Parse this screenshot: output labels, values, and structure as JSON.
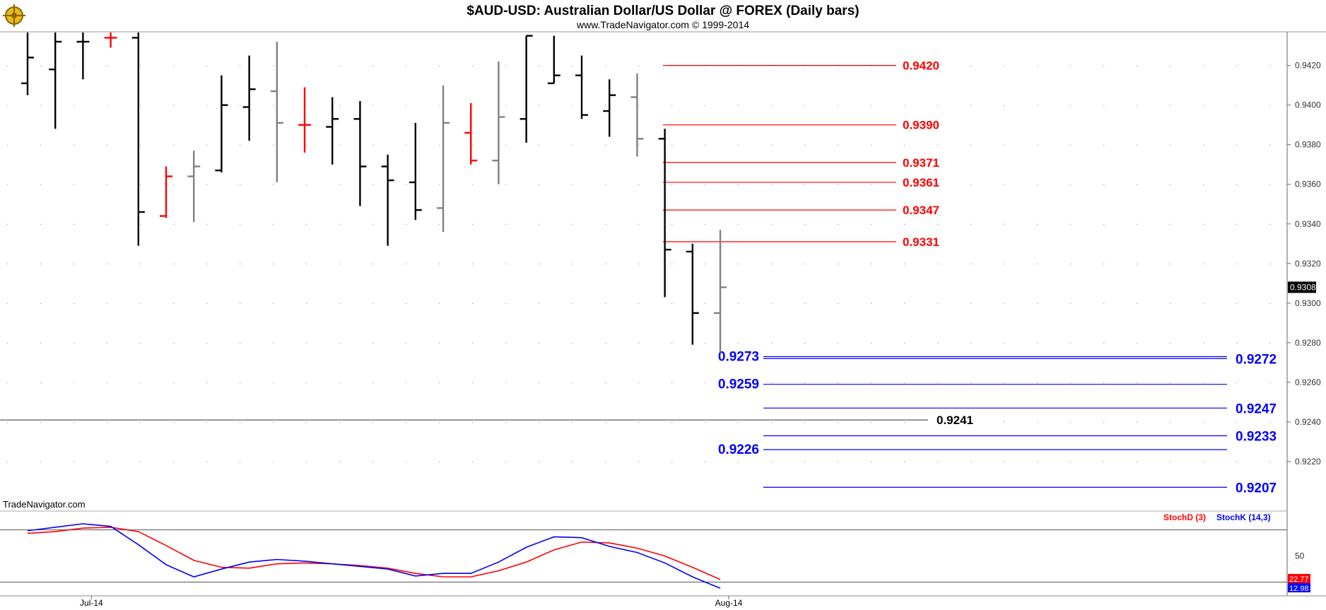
{
  "header": {
    "title": "$AUD-USD:  Australian Dollar/US Dollar @ FOREX  (Daily bars)",
    "subtitle": "www.TradeNavigator.com © 1999-2014",
    "watermark": "TradeNavigator.com"
  },
  "colors": {
    "up_bar": "#000000",
    "down_bar": "#808080",
    "red_bar": "#ff0000",
    "resistance": "#ff0000",
    "support": "#0000ff",
    "stoch_d": "#ff0000",
    "stoch_k": "#0000ff"
  },
  "chart_data": {
    "type": "ohlc",
    "price_axis": {
      "ylim": [
        0.9195,
        0.9437
      ],
      "ticks": [
        "0.9420",
        "0.9400",
        "0.9380",
        "0.9360",
        "0.9340",
        "0.9320",
        "0.9300",
        "0.9280",
        "0.9260",
        "0.9240",
        "0.9220"
      ],
      "tick_values": [
        0.942,
        0.94,
        0.938,
        0.936,
        0.934,
        0.932,
        0.93,
        0.928,
        0.926,
        0.924,
        0.922
      ],
      "last_price_label": "0.9308",
      "last_price_value": 0.9308
    },
    "x_axis": {
      "labels": [
        "Jul-14",
        "Aug-14"
      ],
      "label_bar_index": [
        2,
        25
      ]
    },
    "bars": [
      {
        "o": 0.9411,
        "h": 0.945,
        "l": 0.9405,
        "c": 0.9424,
        "color": "black"
      },
      {
        "o": 0.9418,
        "h": 0.945,
        "l": 0.9388,
        "c": 0.9432,
        "color": "black"
      },
      {
        "o": 0.9432,
        "h": 0.945,
        "l": 0.9413,
        "c": 0.9432,
        "color": "black"
      },
      {
        "o": 0.9434,
        "h": 0.945,
        "l": 0.9429,
        "c": 0.9434,
        "color": "red"
      },
      {
        "o": 0.9434,
        "h": 0.945,
        "l": 0.9329,
        "c": 0.9346,
        "color": "black"
      },
      {
        "o": 0.9344,
        "h": 0.9369,
        "l": 0.9343,
        "c": 0.9364,
        "color": "red"
      },
      {
        "o": 0.9364,
        "h": 0.9377,
        "l": 0.9341,
        "c": 0.9369,
        "color": "gray"
      },
      {
        "o": 0.9367,
        "h": 0.9415,
        "l": 0.9366,
        "c": 0.94,
        "color": "black"
      },
      {
        "o": 0.9399,
        "h": 0.9425,
        "l": 0.9382,
        "c": 0.9408,
        "color": "black"
      },
      {
        "o": 0.9407,
        "h": 0.9432,
        "l": 0.9361,
        "c": 0.9391,
        "color": "gray"
      },
      {
        "o": 0.939,
        "h": 0.9409,
        "l": 0.9376,
        "c": 0.939,
        "color": "red"
      },
      {
        "o": 0.9389,
        "h": 0.9404,
        "l": 0.937,
        "c": 0.9393,
        "color": "black"
      },
      {
        "o": 0.9393,
        "h": 0.9402,
        "l": 0.9349,
        "c": 0.9369,
        "color": "black"
      },
      {
        "o": 0.9369,
        "h": 0.9375,
        "l": 0.9329,
        "c": 0.9362,
        "color": "black"
      },
      {
        "o": 0.9361,
        "h": 0.9391,
        "l": 0.9342,
        "c": 0.9347,
        "color": "black"
      },
      {
        "o": 0.9348,
        "h": 0.941,
        "l": 0.9336,
        "c": 0.9391,
        "color": "gray"
      },
      {
        "o": 0.9386,
        "h": 0.9401,
        "l": 0.937,
        "c": 0.9372,
        "color": "red"
      },
      {
        "o": 0.9372,
        "h": 0.9422,
        "l": 0.936,
        "c": 0.9394,
        "color": "gray"
      },
      {
        "o": 0.9393,
        "h": 0.9435,
        "l": 0.9381,
        "c": 0.9435,
        "color": "black"
      },
      {
        "o": 0.9411,
        "h": 0.9435,
        "l": 0.9411,
        "c": 0.9415,
        "color": "black"
      },
      {
        "o": 0.9415,
        "h": 0.9425,
        "l": 0.9393,
        "c": 0.9395,
        "color": "black"
      },
      {
        "o": 0.9397,
        "h": 0.9413,
        "l": 0.9384,
        "c": 0.9405,
        "color": "black"
      },
      {
        "o": 0.9404,
        "h": 0.9416,
        "l": 0.9374,
        "c": 0.9383,
        "color": "gray"
      },
      {
        "o": 0.9383,
        "h": 0.9388,
        "l": 0.9303,
        "c": 0.9327,
        "color": "black"
      },
      {
        "o": 0.9326,
        "h": 0.933,
        "l": 0.9279,
        "c": 0.9295,
        "color": "black"
      },
      {
        "o": 0.9295,
        "h": 0.9337,
        "l": 0.9275,
        "c": 0.9308,
        "color": "gray"
      }
    ],
    "resistance_levels": [
      {
        "label": "0.9420",
        "value": 0.942
      },
      {
        "label": "0.9390",
        "value": 0.939
      },
      {
        "label": "0.9371",
        "value": 0.9371
      },
      {
        "label": "0.9361",
        "value": 0.9361
      },
      {
        "label": "0.9347",
        "value": 0.9347
      },
      {
        "label": "0.9331",
        "value": 0.9331
      }
    ],
    "support_levels_left": [
      {
        "label": "0.9273",
        "value": 0.9273
      },
      {
        "label": "0.9259",
        "value": 0.9259
      },
      {
        "label": "0.9226",
        "value": 0.9226
      }
    ],
    "support_levels_right": [
      {
        "label": "0.9272",
        "value": 0.9272
      },
      {
        "label": "0.9247",
        "value": 0.9247
      },
      {
        "label": "0.9233",
        "value": 0.9233
      },
      {
        "label": "0.9207",
        "value": 0.9207
      }
    ],
    "reference_line": {
      "label": "0.9241",
      "value": 0.9241
    },
    "stochastic": {
      "legend": [
        "StochD (3)",
        "StochK (14,3)"
      ],
      "ylim": [
        5,
        100
      ],
      "levels": [
        80,
        20
      ],
      "tick_label": "50",
      "tick_value": 50,
      "last_d_label": "22.77",
      "last_k_label": "12.98",
      "stoch_d": [
        76,
        78,
        82,
        83,
        78,
        62,
        45,
        37,
        36,
        41,
        42,
        41,
        39,
        36,
        30,
        26,
        26,
        33,
        43,
        57,
        66,
        65,
        59,
        50,
        37,
        23
      ],
      "stoch_k": [
        79,
        83,
        87,
        84,
        63,
        40,
        26,
        35,
        43,
        46,
        44,
        41,
        38,
        35,
        27,
        30,
        30,
        43,
        60,
        72,
        71,
        61,
        54,
        42,
        26,
        13
      ]
    }
  }
}
